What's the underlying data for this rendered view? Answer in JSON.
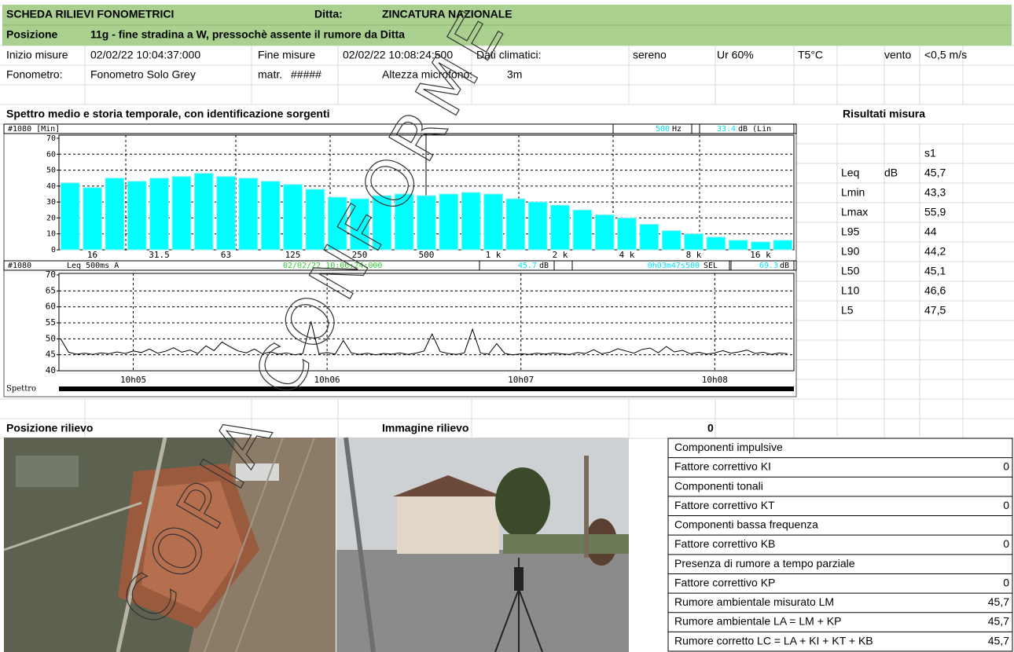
{
  "header": {
    "title": "SCHEDA RILIEVI FONOMETRICI",
    "company_label": "Ditta:",
    "company": "ZINCATURA NAZIONALE",
    "position_label": "Posizione",
    "position": "11g - fine stradina a W, pressochè assente il rumore da Ditta"
  },
  "info": {
    "start_label": "Inizio misure",
    "start": "02/02/22 10:04:37:000",
    "end_label": "Fine misure",
    "end": "02/02/22 10:08:24:500",
    "climate_label": "Dati climatici:",
    "sky": "sereno",
    "humidity": "Ur 60%",
    "temperature": "T5°C",
    "wind_label": "vento",
    "wind": "<0,5 m/s",
    "meter_label": "Fonometro:",
    "meter": "Fonometro Solo Grey",
    "serial_label": "matr.",
    "serial": "#####",
    "mic_height_label": "Altezza microfono:",
    "mic_height": "3m"
  },
  "section_title": "Spettro medio e storia temporale, con identificazione sorgenti",
  "chart_data": [
    {
      "type": "bar",
      "title": "#1080 [Min]",
      "cursor_frequency": 500,
      "frequency_unit": "Hz",
      "cursor_level": 33.4,
      "level_unit": "dB (Lin",
      "color": "#00ffff",
      "grid": true,
      "categories": [
        null,
        "16",
        null,
        null,
        "31.5",
        null,
        null,
        "63",
        null,
        null,
        "125",
        null,
        null,
        "250",
        null,
        null,
        "500",
        null,
        null,
        "1 k",
        null,
        null,
        "2 k",
        null,
        null,
        "4 k",
        null,
        null,
        "8 k",
        null,
        null,
        "16 k",
        null
      ],
      "values": [
        42,
        39,
        45,
        43,
        45,
        46,
        48,
        46,
        45,
        43,
        41,
        38,
        33,
        32,
        34,
        35,
        34,
        35,
        36,
        35,
        32,
        30,
        28,
        25,
        22,
        20,
        16,
        12,
        10,
        8,
        6,
        5,
        6
      ],
      "ylim": [
        0,
        70
      ],
      "yticks": [
        0,
        10,
        20,
        30,
        40,
        50,
        60,
        70
      ]
    },
    {
      "type": "line",
      "title": "#1080",
      "measure": "Leq 500ms A",
      "cursor_time": "02/02/22 10:06:24:000",
      "leq": 45.7,
      "leq_unit": "dB",
      "duration": "0h03m47s500",
      "sel_label": "SEL",
      "sel": 69.3,
      "sel_unit": "dB",
      "footer": "Spettro",
      "color": "#000000",
      "grid": true,
      "x": [
        36277.5,
        36280,
        36282.5,
        36285,
        36287.5,
        36290,
        36292.5,
        36295,
        36297.5,
        36300,
        36302.5,
        36305,
        36307.5,
        36310,
        36312.5,
        36315,
        36317.5,
        36320,
        36322.5,
        36325,
        36327.5,
        36330,
        36332.5,
        36335,
        36337.5,
        36340,
        36342.5,
        36345,
        36347.5,
        36350,
        36352.5,
        36355,
        36357.5,
        36360,
        36362.5,
        36365,
        36367.5,
        36370,
        36372.5,
        36375,
        36377.5,
        36380,
        36382.5,
        36385,
        36387.5,
        36390,
        36392.5,
        36395,
        36397.5,
        36400,
        36402.5,
        36405,
        36407.5,
        36410,
        36412.5,
        36415,
        36417.5,
        36420,
        36422.5,
        36425,
        36427.5,
        36430,
        36432.5,
        36435,
        36437.5,
        36440,
        36442.5,
        36445,
        36447.5,
        36450,
        36452.5,
        36455,
        36457.5,
        36460,
        36462.5,
        36465,
        36467.5,
        36470,
        36472.5,
        36475,
        36477.5,
        36480,
        36482.5,
        36485,
        36487.5,
        36490,
        36492.5,
        36495,
        36497.5,
        36500,
        36502.5
      ],
      "values": [
        50,
        45.8,
        45.2,
        45.5,
        45.1,
        45.6,
        45.3,
        45.9,
        45.4,
        46.2,
        45.7,
        46.8,
        45.5,
        46.1,
        47.2,
        45.8,
        46.5,
        45.4,
        47.8,
        46.3,
        49,
        47.5,
        46.2,
        45.6,
        46.8,
        45.3,
        45.9,
        45.2,
        45.6,
        45.0,
        45.4,
        55.5,
        45.3,
        45.7,
        45.2,
        49.5,
        45.6,
        45.1,
        45.5,
        45.0,
        45.4,
        45.2,
        45.6,
        45.1,
        45.5,
        46.2,
        51.5,
        46.0,
        45.4,
        45.1,
        45.6,
        53,
        45.5,
        45.2,
        48.5,
        45.4,
        45.0,
        45.3,
        45.1,
        45.5,
        45.2,
        45.6,
        45.3,
        45.1,
        45.7,
        45.4,
        46.6,
        45.3,
        45.8,
        46.9,
        46.2,
        45.5,
        46.7,
        47.1,
        45.6,
        47.6,
        45.9,
        46.4,
        45.3,
        45.8,
        45.2,
        45.6,
        46.3,
        45.5,
        45.9,
        46.5,
        45.4,
        45.8,
        45.1,
        45.6,
        45.3
      ],
      "xlim": [
        36277,
        36504.5
      ],
      "xticks": [
        {
          "value": 36300,
          "label": "10h05"
        },
        {
          "value": 36360,
          "label": "10h06"
        },
        {
          "value": 36420,
          "label": "10h07"
        },
        {
          "value": 36480,
          "label": "10h08"
        }
      ],
      "ylim": [
        40,
        70
      ],
      "yticks": [
        40,
        45,
        50,
        55,
        60,
        65,
        70
      ]
    }
  ],
  "results": {
    "title": "Risultati misura",
    "column": "s1",
    "rows": [
      {
        "label": "Leq",
        "unit": "dB",
        "value": "45,7"
      },
      {
        "label": "Lmin",
        "value": "43,3"
      },
      {
        "label": "Lmax",
        "value": "55,9"
      },
      {
        "label": "L95",
        "value": "44"
      },
      {
        "label": "L90",
        "value": "44,2"
      },
      {
        "label": "L50",
        "value": "45,1"
      },
      {
        "label": "L10",
        "value": "46,6"
      },
      {
        "label": "L5",
        "value": "47,5"
      }
    ]
  },
  "photos": {
    "position_title": "Posizione rilievo",
    "image_title": "Immagine rilievo",
    "image_value": "0"
  },
  "corrections": [
    {
      "label": "Componenti impulsive"
    },
    {
      "label": "Fattore correttivo KI",
      "value": "0"
    },
    {
      "label": "Componenti tonali"
    },
    {
      "label": "Fattore correttivo KT",
      "value": "0"
    },
    {
      "label": "Componenti bassa frequenza"
    },
    {
      "label": "Fattore correttivo KB",
      "value": "0"
    },
    {
      "label": "Presenza di rumore a tempo parziale"
    },
    {
      "label": "Fattore correttivo KP",
      "value": "0"
    },
    {
      "label": "Rumore ambientale misurato LM",
      "value": "45,7"
    },
    {
      "label": "Rumore ambientale LA = LM + KP",
      "value": "45,7"
    },
    {
      "label": "Rumore corretto  LC = LA + KI + KT + KB",
      "value": "45,7"
    }
  ],
  "watermark": "COPIA CONFORME"
}
